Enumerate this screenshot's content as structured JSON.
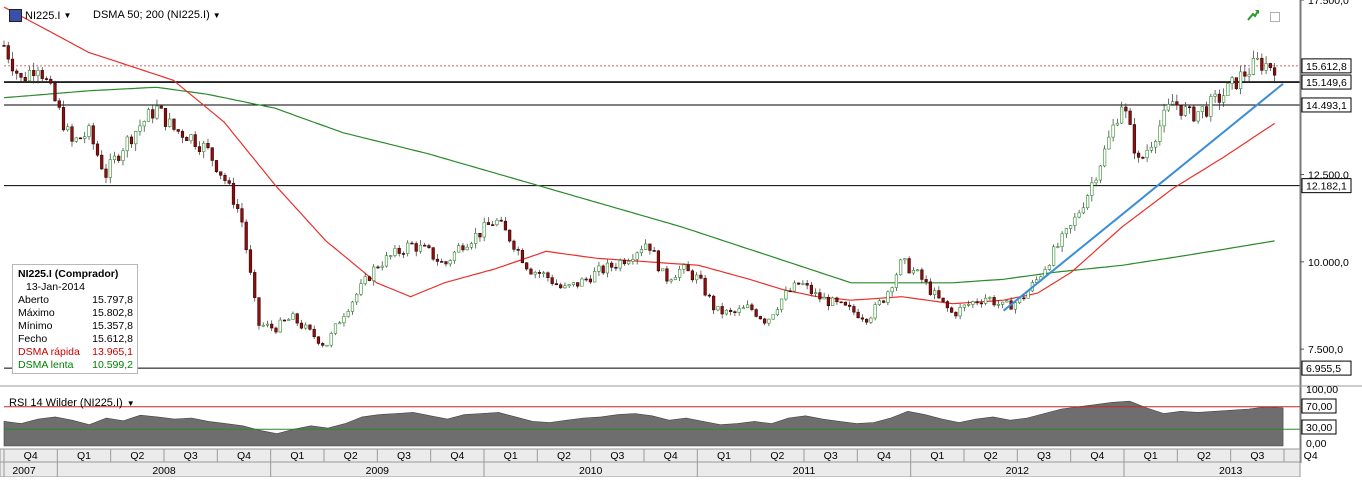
{
  "header": {
    "instrument": "NI225.I",
    "indicator": "DSMA 50; 200 (NI225.I)"
  },
  "rsi_panel": {
    "title": "RSI 14 Wilder (NI225.I)"
  },
  "info_box": {
    "title": "NI225.I (Comprador)",
    "date": "13-Jan-2014",
    "rows": [
      {
        "label": "Aberto",
        "value": "15.797,8",
        "color": "#000000"
      },
      {
        "label": "Máximo",
        "value": "15.802,8",
        "color": "#000000"
      },
      {
        "label": "Mínimo",
        "value": "15.357,8",
        "color": "#000000"
      },
      {
        "label": "Fecho",
        "value": "15.612,8",
        "color": "#000000"
      },
      {
        "label": "DSMA rápida",
        "value": "13.965,1",
        "color": "#cc0000"
      },
      {
        "label": "DSMA lenta",
        "value": "10.599,2",
        "color": "#008000"
      }
    ]
  },
  "colors": {
    "fast_ma": "#e8302c",
    "slow_ma": "#2a8a2a",
    "trendline": "#3b8ed6",
    "up_candle": "#2e8b2e",
    "down_candle": "#8b1010",
    "rsi_fill": "#6e6e6e",
    "rsi_70": "#cc2222",
    "rsi_30": "#2a8a2a"
  },
  "chart_data": {
    "type": "candlestick",
    "y_axis": {
      "min": 6500,
      "max": 17500,
      "tick_labels": [
        "17.500,0",
        "12.500,0",
        "10.000,0",
        "7.500,0"
      ],
      "ticks": [
        17500,
        12500,
        10000,
        7500
      ]
    },
    "price_labels": [
      {
        "value": 15612.8,
        "label": "15.612,8"
      },
      {
        "value": 15149.6,
        "label": "15.149,6"
      },
      {
        "value": 14493.1,
        "label": "14.493,1"
      },
      {
        "value": 12182.1,
        "label": "12.182,1"
      },
      {
        "value": 6955.5,
        "label": "6.955,5"
      }
    ],
    "horizontal_lines": [
      15149.6,
      14493.1,
      12182.1,
      6955.5
    ],
    "last_close": 15612.8,
    "quarters": [
      "Q4",
      "Q1",
      "Q2",
      "Q3",
      "Q4",
      "Q1",
      "Q2",
      "Q3",
      "Q4",
      "Q1",
      "Q2",
      "Q3",
      "Q4",
      "Q1",
      "Q2",
      "Q3",
      "Q4",
      "Q1",
      "Q2",
      "Q3",
      "Q4",
      "Q1",
      "Q2",
      "Q3",
      "Q4"
    ],
    "years": [
      "2007",
      "2008",
      "2009",
      "2010",
      "2011",
      "2012",
      "2013"
    ],
    "price_path": [
      [
        0,
        16200
      ],
      [
        2,
        15200
      ],
      [
        4,
        15700
      ],
      [
        6,
        14600
      ],
      [
        8,
        13400
      ],
      [
        10,
        13700
      ],
      [
        12,
        12500
      ],
      [
        14,
        13300
      ],
      [
        16,
        13900
      ],
      [
        18,
        14400
      ],
      [
        20,
        13800
      ],
      [
        22,
        13600
      ],
      [
        24,
        13200
      ],
      [
        26,
        12400
      ],
      [
        28,
        11300
      ],
      [
        30,
        8200
      ],
      [
        32,
        8100
      ],
      [
        34,
        8400
      ],
      [
        36,
        8000
      ],
      [
        38,
        7600
      ],
      [
        40,
        8500
      ],
      [
        42,
        9200
      ],
      [
        44,
        9900
      ],
      [
        46,
        10200
      ],
      [
        48,
        10500
      ],
      [
        50,
        10300
      ],
      [
        52,
        9900
      ],
      [
        54,
        10500
      ],
      [
        56,
        10800
      ],
      [
        58,
        11200
      ],
      [
        60,
        10600
      ],
      [
        62,
        9800
      ],
      [
        64,
        9600
      ],
      [
        66,
        9200
      ],
      [
        68,
        9400
      ],
      [
        70,
        9700
      ],
      [
        72,
        9900
      ],
      [
        74,
        10200
      ],
      [
        76,
        10600
      ],
      [
        78,
        9500
      ],
      [
        80,
        9800
      ],
      [
        82,
        9500
      ],
      [
        84,
        8600
      ],
      [
        86,
        8500
      ],
      [
        88,
        8700
      ],
      [
        90,
        8300
      ],
      [
        92,
        9000
      ],
      [
        94,
        9400
      ],
      [
        96,
        9000
      ],
      [
        98,
        8800
      ],
      [
        100,
        8600
      ],
      [
        102,
        8400
      ],
      [
        104,
        9000
      ],
      [
        106,
        10000
      ],
      [
        108,
        9600
      ],
      [
        110,
        9000
      ],
      [
        112,
        8500
      ],
      [
        114,
        8800
      ],
      [
        116,
        9000
      ],
      [
        118,
        8700
      ],
      [
        120,
        8900
      ],
      [
        122,
        9500
      ],
      [
        124,
        10300
      ],
      [
        126,
        11000
      ],
      [
        128,
        12000
      ],
      [
        130,
        13200
      ],
      [
        132,
        14600
      ],
      [
        134,
        12800
      ],
      [
        136,
        13700
      ],
      [
        138,
        14600
      ],
      [
        140,
        14200
      ],
      [
        142,
        14400
      ],
      [
        144,
        14800
      ],
      [
        146,
        15300
      ],
      [
        148,
        15700
      ],
      [
        150,
        15612.8
      ]
    ],
    "fast_ma": [
      [
        0,
        17300
      ],
      [
        10,
        16000
      ],
      [
        20,
        15200
      ],
      [
        26,
        14000
      ],
      [
        32,
        12200
      ],
      [
        38,
        10600
      ],
      [
        44,
        9400
      ],
      [
        48,
        9000
      ],
      [
        52,
        9400
      ],
      [
        58,
        9800
      ],
      [
        64,
        10300
      ],
      [
        70,
        10100
      ],
      [
        76,
        10000
      ],
      [
        82,
        9900
      ],
      [
        88,
        9500
      ],
      [
        92,
        9200
      ],
      [
        96,
        9000
      ],
      [
        100,
        8900
      ],
      [
        106,
        9000
      ],
      [
        112,
        8800
      ],
      [
        118,
        8900
      ],
      [
        122,
        9100
      ],
      [
        126,
        9700
      ],
      [
        132,
        11000
      ],
      [
        138,
        12100
      ],
      [
        144,
        13000
      ],
      [
        150,
        13965.1
      ]
    ],
    "slow_ma": [
      [
        0,
        14700
      ],
      [
        10,
        14900
      ],
      [
        18,
        15000
      ],
      [
        24,
        14800
      ],
      [
        32,
        14400
      ],
      [
        40,
        13700
      ],
      [
        50,
        13100
      ],
      [
        60,
        12400
      ],
      [
        70,
        11700
      ],
      [
        80,
        11000
      ],
      [
        90,
        10200
      ],
      [
        100,
        9400
      ],
      [
        106,
        9400
      ],
      [
        112,
        9400
      ],
      [
        118,
        9500
      ],
      [
        124,
        9700
      ],
      [
        132,
        9900
      ],
      [
        140,
        10200
      ],
      [
        150,
        10599.2
      ]
    ],
    "trendline": {
      "x": [
        118,
        151
      ],
      "y": [
        8600,
        15100
      ]
    },
    "rsi": {
      "y_axis": {
        "min": 0,
        "max": 100,
        "tick_labels": [
          "100,00",
          "70,00",
          "30,00",
          "0,00"
        ],
        "ticks": [
          100,
          70,
          30,
          0
        ]
      },
      "levels": [
        70,
        30
      ],
      "values": [
        44,
        40,
        48,
        52,
        46,
        38,
        50,
        45,
        55,
        52,
        48,
        50,
        44,
        40,
        36,
        28,
        22,
        30,
        36,
        32,
        40,
        52,
        56,
        58,
        60,
        54,
        48,
        56,
        58,
        60,
        52,
        44,
        42,
        46,
        50,
        52,
        56,
        58,
        54,
        46,
        50,
        44,
        38,
        40,
        44,
        40,
        50,
        54,
        48,
        44,
        40,
        42,
        50,
        62,
        56,
        48,
        42,
        48,
        52,
        46,
        50,
        58,
        66,
        70,
        74,
        78,
        80,
        68,
        58,
        62,
        60,
        62,
        64,
        66,
        70,
        68
      ]
    }
  }
}
